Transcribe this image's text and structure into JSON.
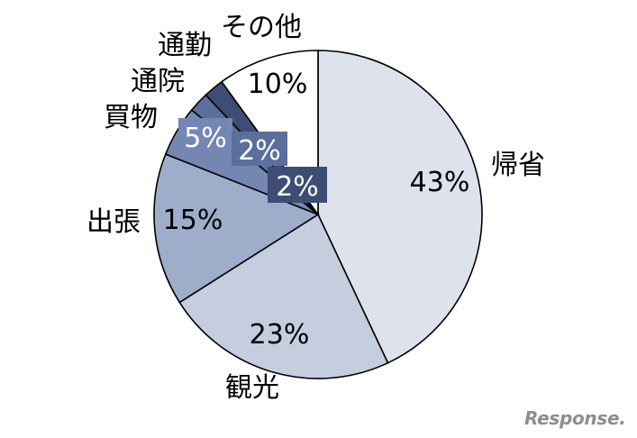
{
  "chart_data": {
    "type": "pie",
    "categories": [
      "帰省",
      "観光",
      "出張",
      "買物",
      "通院",
      "通勤",
      "その他"
    ],
    "values": [
      43,
      23,
      15,
      5,
      2,
      2,
      10
    ],
    "value_labels": [
      "43%",
      "23%",
      "15%",
      "5%",
      "2%",
      "2%",
      "10%"
    ],
    "colors": [
      "#dde2ec",
      "#c5cedf",
      "#9dadca",
      "#7487b3",
      "#5a6f9c",
      "#3d4d73",
      "#ffffff"
    ],
    "start": "12 o'clock",
    "direction": "clockwise"
  },
  "watermark": "Response."
}
